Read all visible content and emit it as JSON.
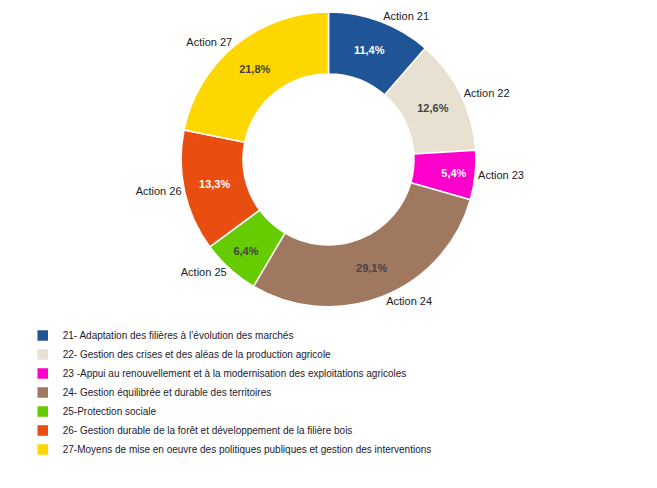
{
  "chart_data": {
    "type": "pie",
    "categories": [
      "Action 21",
      "Action 22",
      "Action 23",
      "Action 24",
      "Action 25",
      "Action 26",
      "Action 27"
    ],
    "values": [
      11.4,
      12.6,
      5.4,
      29.1,
      6.4,
      13.3,
      21.8
    ],
    "value_labels": [
      "11,4%",
      "12,6%",
      "5,4%",
      "29,1%",
      "6,4%",
      "13,3%",
      "21,8%"
    ],
    "colors": [
      "#1f5496",
      "#e8e0d0",
      "#ff00cc",
      "#a07860",
      "#66cc00",
      "#e84e0f",
      "#ffd700"
    ],
    "legend_labels": [
      "21- Adaptation des filières à l’évolution des marchés",
      "22- Gestion des crises et des aléas de la production agricole",
      "23 -Appui au renouvellement et à la modernisation des exploitations agricoles",
      "24- Gestion équilibrée et durable des territoires",
      "25-Protection sociale",
      "26- Gestion durable de la forêt et développement de la filière bois",
      "27-Moyens de mise en oeuvre des politiques publiques et gestion des interventions"
    ],
    "legend": "bottom"
  }
}
